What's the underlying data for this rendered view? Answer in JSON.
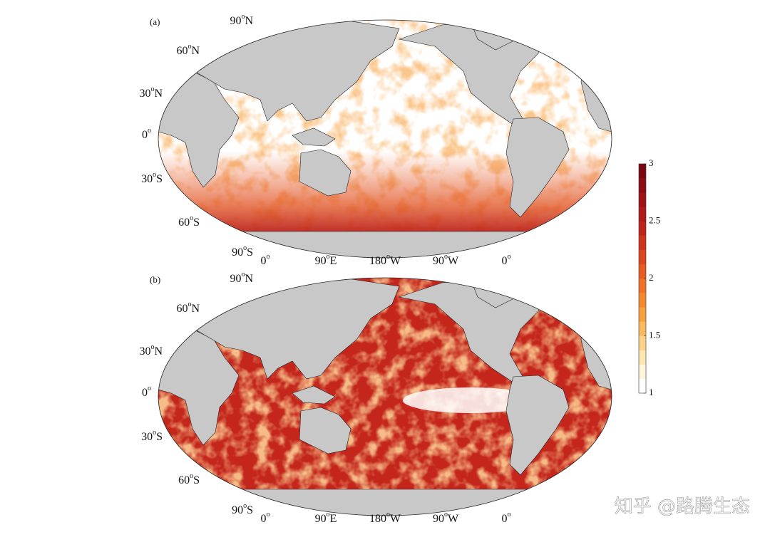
{
  "panels": [
    {
      "label": "(a)",
      "style": "low"
    },
    {
      "label": "(b)",
      "style": "high"
    }
  ],
  "lat_labels": [
    {
      "deg": "90",
      "sup": "o",
      "dir": "N"
    },
    {
      "deg": "60",
      "sup": "o",
      "dir": "N"
    },
    {
      "deg": "30",
      "sup": "o",
      "dir": "N"
    },
    {
      "deg": "0",
      "sup": "o",
      "dir": ""
    },
    {
      "deg": "30",
      "sup": "o",
      "dir": "S"
    },
    {
      "deg": "60",
      "sup": "o",
      "dir": "S"
    },
    {
      "deg": "90",
      "sup": "o",
      "dir": "S"
    }
  ],
  "lon_labels": [
    {
      "deg": "0",
      "sup": "o",
      "dir": ""
    },
    {
      "deg": "90",
      "sup": "o",
      "dir": "E"
    },
    {
      "deg": "180",
      "sup": "o",
      "dir": "W"
    },
    {
      "deg": "90",
      "sup": "o",
      "dir": "W"
    },
    {
      "deg": "0",
      "sup": "o",
      "dir": ""
    }
  ],
  "colorbar": {
    "range": [
      1,
      3
    ],
    "ticks": [
      1,
      1.5,
      2,
      2.5,
      3
    ],
    "colors": [
      "#ffffff",
      "#fff4dc",
      "#fde6b2",
      "#fcd28a",
      "#f9b95f",
      "#f6a03e",
      "#f3892f",
      "#ee7228",
      "#e65c22",
      "#dc471f",
      "#cf341d",
      "#c0251b",
      "#b01a1a",
      "#9f1218",
      "#8c0c15",
      "#7a0812"
    ]
  },
  "watermark": "知乎 @路腾生态"
}
